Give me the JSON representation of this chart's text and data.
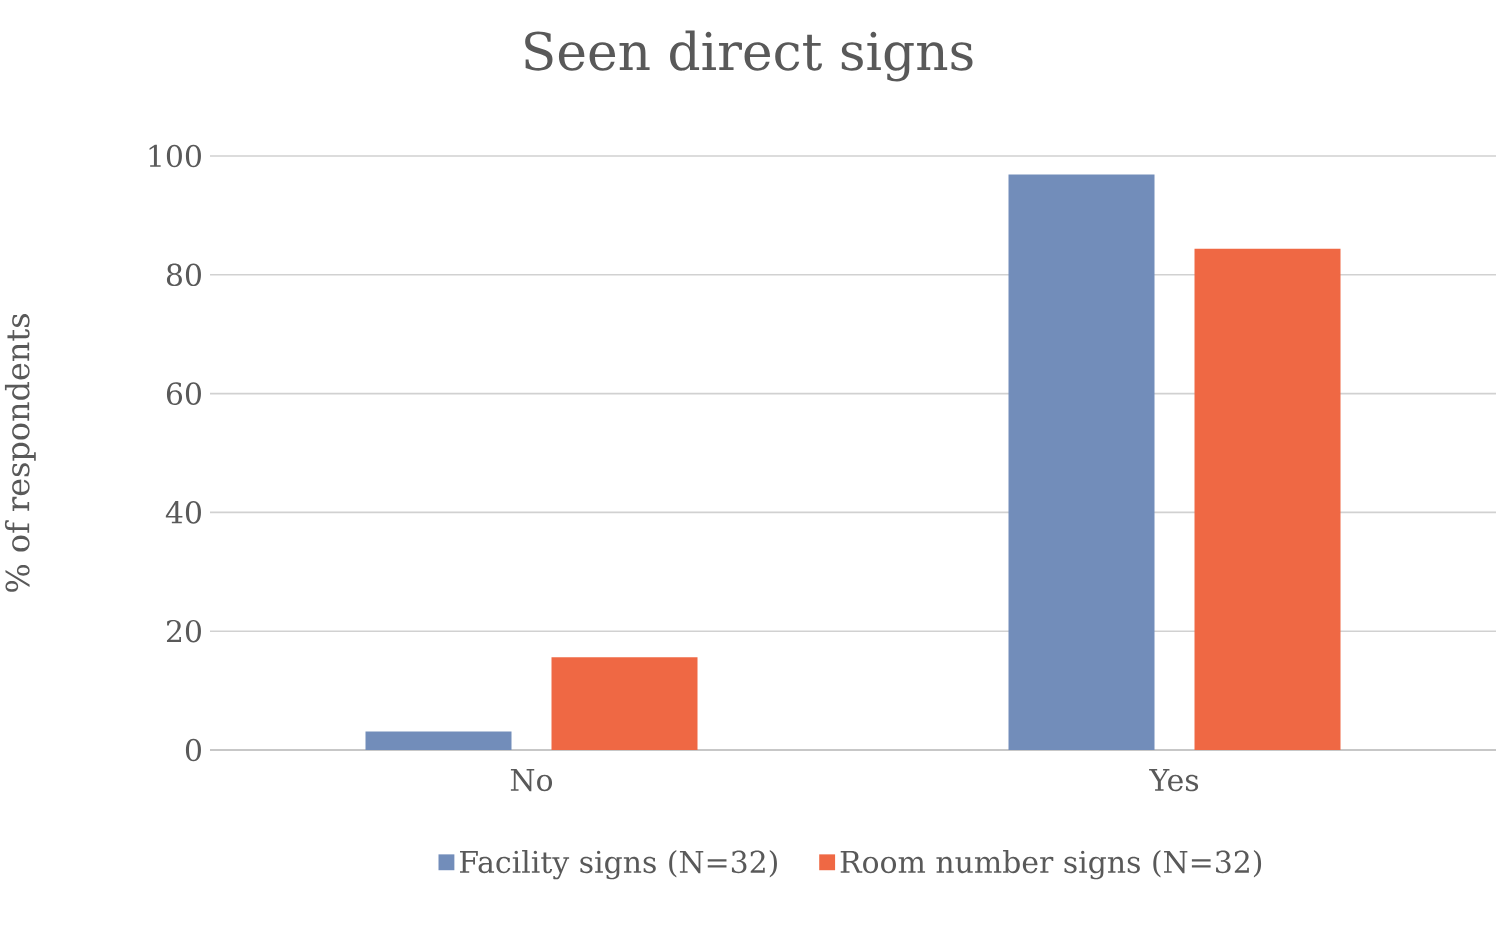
{
  "chart_data": {
    "type": "bar",
    "title": "Seen direct signs",
    "ylabel": "% of respondents",
    "categories": [
      "No",
      "Yes"
    ],
    "series": [
      {
        "name": "Facility signs (N=32)",
        "color": "#728dba",
        "values": [
          3.1,
          96.9
        ]
      },
      {
        "name": "Room number signs (N=32)",
        "color": "#ef6844",
        "values": [
          15.6,
          84.4
        ]
      }
    ],
    "ylim": [
      0,
      100
    ],
    "yticks": [
      0,
      20,
      40,
      60,
      80,
      100
    ],
    "grid": "y",
    "legend": "bottom"
  }
}
